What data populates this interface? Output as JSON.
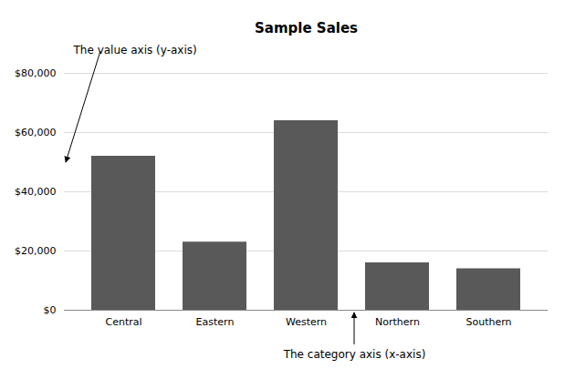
{
  "chart_data": {
    "type": "bar",
    "title": "Sample Sales",
    "categories": [
      "Central",
      "Eastern",
      "Western",
      "Northern",
      "Southern"
    ],
    "values": [
      52000,
      23000,
      64000,
      16000,
      14000
    ],
    "color": "#595959",
    "ylim": [
      0,
      80000
    ],
    "yticks": [
      {
        "value": 0,
        "label": "$0"
      },
      {
        "value": 20000,
        "label": "$20,000"
      },
      {
        "value": 40000,
        "label": "$40,000"
      },
      {
        "value": 60000,
        "label": "$60,000"
      },
      {
        "value": 80000,
        "label": "$80,000"
      }
    ],
    "grid": true,
    "annotations": [
      "The value axis (y-axis)",
      "The category axis (x-axis)"
    ]
  }
}
